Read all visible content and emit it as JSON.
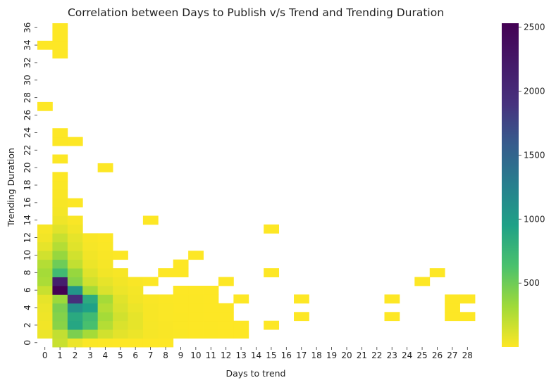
{
  "chart_data": {
    "type": "heatmap",
    "title": "Correlation between Days to Publish v/s Trend and Trending Duration",
    "xlabel": "Days to trend",
    "ylabel": "Trending Duration",
    "x_categories": [
      0,
      1,
      2,
      3,
      4,
      5,
      6,
      7,
      8,
      9,
      10,
      11,
      12,
      13,
      14,
      15,
      16,
      17,
      18,
      19,
      20,
      21,
      22,
      23,
      24,
      25,
      26,
      27,
      28
    ],
    "y_categories": [
      0,
      1,
      2,
      3,
      4,
      5,
      6,
      7,
      8,
      9,
      10,
      11,
      12,
      13,
      14,
      15,
      16,
      17,
      18,
      19,
      20,
      21,
      22,
      23,
      24,
      25,
      26,
      27,
      28,
      29,
      30,
      31,
      32,
      33,
      34,
      35,
      36
    ],
    "x_tick_labels": [
      "0",
      "1",
      "2",
      "3",
      "4",
      "5",
      "6",
      "7",
      "8",
      "9",
      "10",
      "11",
      "12",
      "13",
      "14",
      "15",
      "16",
      "17",
      "18",
      "19",
      "20",
      "21",
      "22",
      "23",
      "24",
      "25",
      "26",
      "27",
      "28"
    ],
    "y_tick_labels": [
      "0",
      "2",
      "4",
      "6",
      "8",
      "10",
      "12",
      "14",
      "16",
      "18",
      "20",
      "22",
      "24",
      "26",
      "28",
      "30",
      "32",
      "34",
      "36"
    ],
    "colormap": "viridis_r",
    "vmin": 1,
    "vmax": 2530,
    "colorbar_ticks": [
      500,
      1000,
      1500,
      2000,
      2500
    ],
    "colorbar_tick_labels": [
      "500",
      "1000",
      "1500",
      "2000",
      "2500"
    ],
    "cells": [
      [
        0,
        1,
        35
      ],
      [
        0,
        1,
        180
      ],
      [
        0,
        2,
        140
      ],
      [
        0,
        2,
        60
      ],
      [
        0,
        3,
        20
      ],
      [
        0,
        3,
        12
      ],
      [
        0,
        4,
        8
      ],
      [
        0,
        4,
        5
      ],
      [
        0,
        5,
        4
      ],
      [
        0,
        5,
        2
      ],
      [
        0,
        6,
        1
      ],
      [
        0,
        6,
        1
      ],
      [
        0,
        7,
        1
      ],
      [
        0,
        7,
        1
      ],
      [
        0,
        8,
        1
      ],
      [
        1,
        0,
        60
      ],
      [
        1,
        1,
        200
      ],
      [
        1,
        2,
        450
      ],
      [
        1,
        3,
        300
      ],
      [
        1,
        4,
        150
      ],
      [
        1,
        5,
        90
      ],
      [
        1,
        6,
        60
      ],
      [
        1,
        7,
        25
      ],
      [
        1,
        8,
        15
      ],
      [
        1,
        9,
        10
      ],
      [
        1,
        10,
        6
      ],
      [
        1,
        11,
        3
      ],
      [
        1,
        12,
        2
      ],
      [
        1,
        13,
        1
      ],
      [
        2,
        0,
        40
      ],
      [
        2,
        1,
        400
      ],
      [
        2,
        2,
        900
      ],
      [
        2,
        3,
        650
      ],
      [
        2,
        4,
        250
      ],
      [
        2,
        5,
        120
      ],
      [
        2,
        6,
        80
      ],
      [
        2,
        7,
        25
      ],
      [
        2,
        8,
        15
      ],
      [
        2,
        9,
        8
      ],
      [
        2,
        10,
        5
      ],
      [
        2,
        11,
        3
      ],
      [
        2,
        12,
        2
      ],
      [
        2,
        13,
        1
      ],
      [
        2,
        15,
        1
      ],
      [
        3,
        0,
        50
      ],
      [
        3,
        1,
        420
      ],
      [
        3,
        2,
        870
      ],
      [
        3,
        3,
        700
      ],
      [
        3,
        4,
        300
      ],
      [
        3,
        5,
        150
      ],
      [
        3,
        6,
        80
      ],
      [
        3,
        7,
        20
      ],
      [
        3,
        8,
        10
      ],
      [
        3,
        9,
        8
      ],
      [
        3,
        10,
        5
      ],
      [
        3,
        11,
        2
      ],
      [
        3,
        12,
        2
      ],
      [
        3,
        17,
        1
      ],
      [
        3,
        23,
        1
      ],
      [
        3,
        27,
        1
      ],
      [
        3,
        28,
        1
      ],
      [
        4,
        0,
        60
      ],
      [
        4,
        1,
        450
      ],
      [
        4,
        2,
        1100
      ],
      [
        4,
        3,
        950
      ],
      [
        4,
        4,
        250
      ],
      [
        4,
        5,
        120
      ],
      [
        4,
        6,
        60
      ],
      [
        4,
        7,
        20
      ],
      [
        4,
        8,
        10
      ],
      [
        4,
        9,
        6
      ],
      [
        4,
        10,
        4
      ],
      [
        4,
        11,
        2
      ],
      [
        4,
        12,
        1
      ],
      [
        4,
        27,
        1
      ],
      [
        5,
        0,
        80
      ],
      [
        5,
        1,
        330
      ],
      [
        5,
        2,
        1950
      ],
      [
        5,
        3,
        850
      ],
      [
        5,
        4,
        300
      ],
      [
        5,
        5,
        100
      ],
      [
        5,
        6,
        40
      ],
      [
        5,
        7,
        15
      ],
      [
        5,
        8,
        8
      ],
      [
        5,
        9,
        5
      ],
      [
        5,
        10,
        3
      ],
      [
        5,
        11,
        2
      ],
      [
        5,
        13,
        1
      ],
      [
        5,
        17,
        1
      ],
      [
        5,
        23,
        1
      ],
      [
        5,
        27,
        1
      ],
      [
        5,
        28,
        1
      ],
      [
        6,
        0,
        180
      ],
      [
        6,
        1,
        2530
      ],
      [
        6,
        2,
        1050
      ],
      [
        6,
        3,
        300
      ],
      [
        6,
        4,
        120
      ],
      [
        6,
        5,
        60
      ],
      [
        6,
        6,
        30
      ],
      [
        6,
        9,
        1
      ],
      [
        6,
        10,
        1
      ],
      [
        6,
        11,
        1
      ],
      [
        7,
        0,
        280
      ],
      [
        7,
        1,
        2150
      ],
      [
        7,
        2,
        400
      ],
      [
        7,
        3,
        150
      ],
      [
        7,
        4,
        80
      ],
      [
        7,
        5,
        40
      ],
      [
        7,
        6,
        15
      ],
      [
        7,
        7,
        5
      ],
      [
        7,
        12,
        1
      ],
      [
        7,
        25,
        1
      ],
      [
        8,
        0,
        300
      ],
      [
        8,
        1,
        700
      ],
      [
        8,
        2,
        350
      ],
      [
        8,
        3,
        100
      ],
      [
        8,
        4,
        40
      ],
      [
        8,
        5,
        20
      ],
      [
        8,
        8,
        2
      ],
      [
        8,
        9,
        1
      ],
      [
        8,
        15,
        1
      ],
      [
        8,
        26,
        1
      ],
      [
        9,
        0,
        250
      ],
      [
        9,
        1,
        500
      ],
      [
        9,
        2,
        200
      ],
      [
        9,
        3,
        60
      ],
      [
        9,
        4,
        25
      ],
      [
        9,
        9,
        1
      ],
      [
        10,
        0,
        150
      ],
      [
        10,
        1,
        350
      ],
      [
        10,
        2,
        150
      ],
      [
        10,
        3,
        40
      ],
      [
        10,
        4,
        15
      ],
      [
        10,
        5,
        5
      ],
      [
        10,
        10,
        1
      ],
      [
        11,
        0,
        80
      ],
      [
        11,
        1,
        250
      ],
      [
        11,
        2,
        100
      ],
      [
        11,
        3,
        25
      ],
      [
        11,
        4,
        10
      ],
      [
        12,
        0,
        40
      ],
      [
        12,
        1,
        180
      ],
      [
        12,
        2,
        80
      ],
      [
        12,
        3,
        15
      ],
      [
        12,
        4,
        5
      ],
      [
        13,
        0,
        20
      ],
      [
        13,
        1,
        100
      ],
      [
        13,
        2,
        40
      ],
      [
        13,
        15,
        1
      ],
      [
        14,
        1,
        50
      ],
      [
        14,
        2,
        15
      ],
      [
        14,
        7,
        1
      ],
      [
        15,
        1,
        30
      ],
      [
        16,
        1,
        20
      ],
      [
        16,
        2,
        5
      ],
      [
        17,
        1,
        15
      ],
      [
        18,
        1,
        10
      ],
      [
        19,
        1,
        5
      ],
      [
        20,
        4,
        1
      ],
      [
        21,
        1,
        3
      ],
      [
        23,
        1,
        3
      ],
      [
        23,
        2,
        1
      ],
      [
        24,
        1,
        2
      ],
      [
        27,
        0,
        1
      ],
      [
        33,
        1,
        1
      ],
      [
        34,
        0,
        1
      ],
      [
        34,
        1,
        1
      ],
      [
        35,
        1,
        1
      ],
      [
        36,
        1,
        1
      ]
    ]
  }
}
